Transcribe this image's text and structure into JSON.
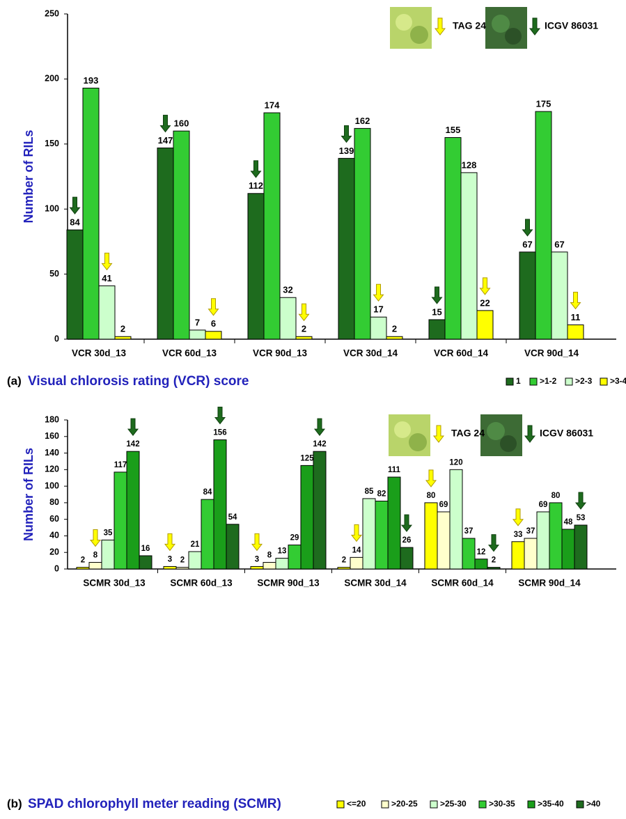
{
  "chart_data": [
    {
      "type": "bar",
      "caption_label": "(a)",
      "caption": "Visual chlorosis rating (VCR) score",
      "ylabel": "Number of RILs",
      "annotations": [
        "TAG 24",
        "ICGV 86031"
      ],
      "categories": [
        "VCR 30d_13",
        "VCR 60d_13",
        "VCR 90d_13",
        "VCR 30d_14",
        "VCR 60d_14",
        "VCR 90d_14"
      ],
      "series": [
        {
          "name": "1",
          "color": "#1e6b1e",
          "values": [
            84,
            147,
            112,
            139,
            15,
            67
          ]
        },
        {
          "name": ">1-2",
          "color": "#33cc33",
          "values": [
            193,
            160,
            174,
            162,
            155,
            175
          ]
        },
        {
          "name": ">2-3",
          "color": "#ccffcc",
          "values": [
            41,
            7,
            32,
            17,
            128,
            67
          ]
        },
        {
          "name": ">3-4",
          "color": "#ffff00",
          "values": [
            2,
            6,
            2,
            2,
            22,
            11
          ]
        }
      ],
      "ylim": [
        0,
        250
      ],
      "yticks": [
        0,
        50,
        100,
        150,
        200,
        250
      ]
    },
    {
      "type": "bar",
      "caption_label": "(b)",
      "caption": "SPAD chlorophyll meter reading (SCMR)",
      "ylabel": "Number of RILs",
      "annotations": [
        "TAG 24",
        "ICGV 86031"
      ],
      "categories": [
        "SCMR 30d_13",
        "SCMR 60d_13",
        "SCMR 90d_13",
        "SCMR 30d_14",
        "SCMR 60d_14",
        "SCMR 90d_14"
      ],
      "series": [
        {
          "name": "<=20",
          "color": "#ffff00",
          "values": [
            2,
            3,
            3,
            2,
            80,
            33
          ]
        },
        {
          "name": ">20-25",
          "color": "#ffffcc",
          "values": [
            8,
            2,
            8,
            14,
            69,
            37
          ]
        },
        {
          "name": ">25-30",
          "color": "#ccffcc",
          "values": [
            35,
            21,
            13,
            85,
            120,
            69
          ]
        },
        {
          "name": ">30-35",
          "color": "#33cc33",
          "values": [
            117,
            84,
            29,
            82,
            37,
            80
          ]
        },
        {
          "name": ">35-40",
          "color": "#1a9e1a",
          "values": [
            142,
            156,
            125,
            111,
            12,
            48
          ]
        },
        {
          "name": ">40",
          "color": "#1e6b1e",
          "values": [
            16,
            54,
            142,
            26,
            2,
            53
          ]
        }
      ],
      "ylim": [
        0,
        180
      ],
      "yticks": [
        0,
        20,
        40,
        60,
        80,
        100,
        120,
        140,
        160,
        180
      ]
    }
  ]
}
